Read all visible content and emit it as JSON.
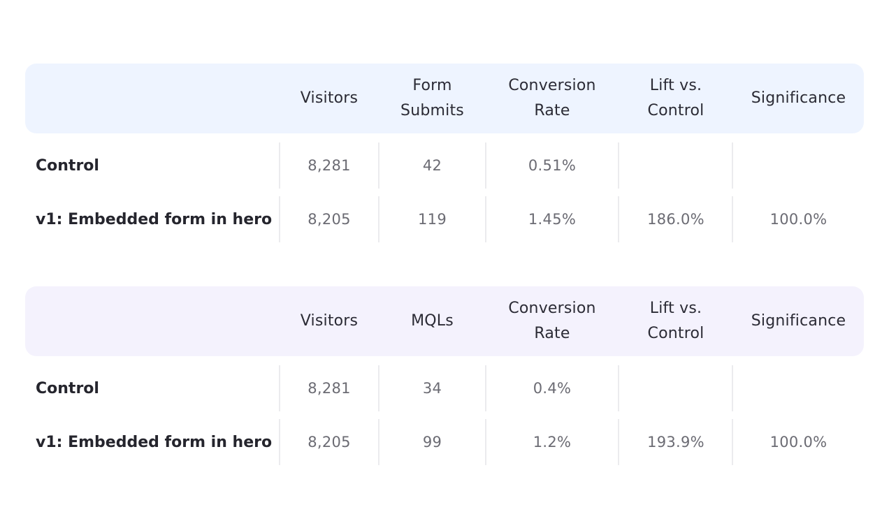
{
  "colors": {
    "header1_bg": "#eef4ff",
    "header2_bg": "#f4f2fd"
  },
  "tables": [
    {
      "headers": [
        "Visitors",
        "Form\nSubmits",
        "Conversion\nRate",
        "Lift vs.\nControl",
        "Significance"
      ],
      "rows": [
        {
          "label": "Control",
          "values": [
            "8,281",
            "42",
            "0.51%",
            "",
            ""
          ]
        },
        {
          "label": "v1: Embedded form in hero",
          "values": [
            "8,205",
            "119",
            "1.45%",
            "186.0%",
            "100.0%"
          ]
        }
      ]
    },
    {
      "headers": [
        "Visitors",
        "MQLs",
        "Conversion\nRate",
        "Lift vs.\nControl",
        "Significance"
      ],
      "rows": [
        {
          "label": "Control",
          "values": [
            "8,281",
            "34",
            "0.4%",
            "",
            ""
          ]
        },
        {
          "label": "v1: Embedded form in hero",
          "values": [
            "8,205",
            "99",
            "1.2%",
            "193.9%",
            "100.0%"
          ]
        }
      ]
    }
  ]
}
